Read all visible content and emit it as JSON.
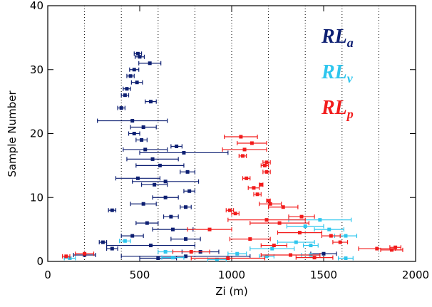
{
  "chart_data": {
    "type": "errorbar-scatter",
    "x_label": "Zi (m)",
    "y_label": "Sample Number",
    "xlim": [
      0,
      2000
    ],
    "xticks": [
      0,
      500,
      1000,
      1500,
      2000
    ],
    "ylim": [
      0,
      40
    ],
    "yticks": [
      0,
      10,
      20,
      30,
      40
    ],
    "xgrid": [
      200,
      400,
      600,
      800,
      1000,
      1200,
      1400,
      1600,
      1800
    ],
    "series": [
      {
        "name": "RLa",
        "color": "#0d1f72",
        "x": [
          490,
          500,
          555,
          470,
          450,
          485,
          430,
          420,
          560,
          400,
          460,
          520,
          470,
          510,
          700,
          530,
          740,
          570,
          610,
          760,
          490,
          640,
          580,
          770,
          640,
          520,
          750,
          350,
          670,
          540,
          680,
          460,
          750,
          300,
          560,
          350,
          830,
          200,
          1500,
          600,
          750
        ],
        "values": [
          32.5,
          32,
          31,
          30,
          29,
          28,
          27,
          26,
          25,
          24,
          22,
          21,
          20,
          19,
          18,
          17.5,
          17,
          16,
          15,
          14,
          13,
          12.5,
          12,
          11,
          10,
          9,
          8.5,
          8,
          7,
          6,
          5,
          4,
          3.5,
          3,
          2.5,
          2,
          1.5,
          1,
          1.2,
          0.5,
          0.8
        ],
        "xerr": [
          20,
          25,
          60,
          25,
          20,
          30,
          20,
          20,
          30,
          20,
          190,
          70,
          30,
          30,
          30,
          120,
          240,
          140,
          130,
          40,
          120,
          180,
          70,
          30,
          70,
          70,
          30,
          20,
          40,
          60,
          110,
          60,
          80,
          20,
          240,
          30,
          100,
          60,
          70,
          100,
          350
        ]
      },
      {
        "name": "RLv",
        "color": "#2ec6ee",
        "x": [
          1480,
          1400,
          1530,
          1620,
          1350,
          420,
          1430,
          1220,
          640,
          1030,
          1430,
          1190,
          1620,
          920,
          680,
          120
        ],
        "values": [
          6.5,
          5.5,
          5,
          4,
          3,
          3.2,
          2.5,
          2,
          1.5,
          1.2,
          1,
          0.8,
          0.5,
          0.3,
          0.6,
          0.5
        ],
        "xerr": [
          170,
          100,
          80,
          60,
          100,
          30,
          40,
          120,
          40,
          50,
          50,
          40,
          40,
          50,
          60,
          30
        ]
      },
      {
        "name": "RLp",
        "color": "#f21c1c",
        "x": [
          1050,
          1110,
          1070,
          1060,
          1190,
          1180,
          1190,
          1080,
          1160,
          1120,
          1140,
          1200,
          1210,
          1280,
          990,
          1020,
          1380,
          1190,
          1260,
          880,
          1370,
          1540,
          1100,
          1590,
          1230,
          1790,
          1890,
          1870,
          780,
          1320,
          100,
          1450,
          980,
          200
        ],
        "values": [
          19.5,
          18.5,
          17.5,
          16.5,
          15.5,
          15,
          14,
          13,
          12,
          11.5,
          10.5,
          9.5,
          9,
          8.5,
          8,
          7.5,
          7,
          6.5,
          6,
          5,
          4.5,
          4,
          3.5,
          3,
          2.5,
          2,
          2.2,
          1.8,
          1.5,
          1,
          0.8,
          0.6,
          0.5,
          1.2
        ],
        "xerr": [
          90,
          80,
          120,
          20,
          20,
          20,
          20,
          20,
          10,
          30,
          20,
          10,
          60,
          80,
          20,
          20,
          70,
          210,
          160,
          120,
          120,
          50,
          110,
          40,
          70,
          100,
          30,
          60,
          100,
          160,
          20,
          100,
          200,
          50
        ]
      }
    ]
  }
}
